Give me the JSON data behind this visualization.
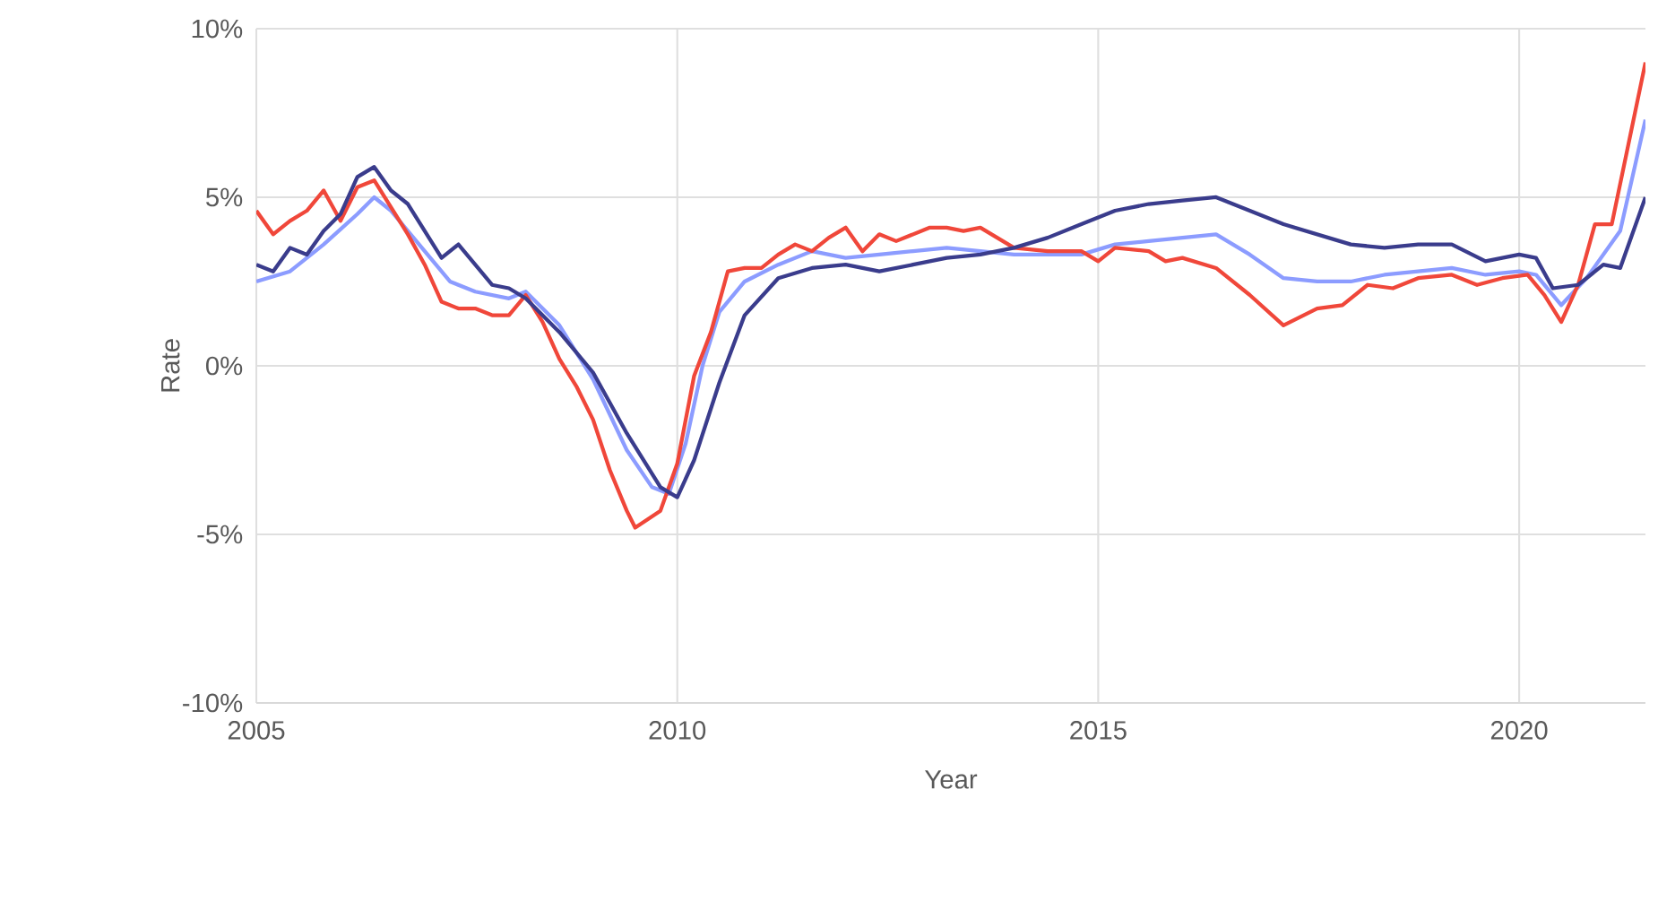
{
  "chart_data": {
    "type": "line",
    "xlabel": "Year",
    "ylabel": "Rate",
    "xlim": [
      2005,
      2021.5
    ],
    "ylim": [
      -10,
      10
    ],
    "xticks": [
      2005,
      2010,
      2015,
      2020
    ],
    "yticks": [
      {
        "value": -10,
        "label": "-10%"
      },
      {
        "value": -5,
        "label": "-5%"
      },
      {
        "value": 0,
        "label": "0%"
      },
      {
        "value": 5,
        "label": "5%"
      },
      {
        "value": 10,
        "label": "10%"
      }
    ],
    "grid": true,
    "marker": "none",
    "line_style": "solid",
    "series": [
      {
        "color": "#8c9cff",
        "x": [
          2005.0,
          2005.4,
          2005.8,
          2006.2,
          2006.4,
          2006.6,
          2006.8,
          2007.0,
          2007.3,
          2007.6,
          2008.0,
          2008.2,
          2008.6,
          2009.0,
          2009.4,
          2009.7,
          2009.9,
          2010.1,
          2010.3,
          2010.5,
          2010.8,
          2011.2,
          2011.6,
          2012.0,
          2012.4,
          2012.8,
          2013.2,
          2013.6,
          2014.0,
          2014.4,
          2014.8,
          2015.2,
          2015.6,
          2016.0,
          2016.4,
          2016.8,
          2017.2,
          2017.6,
          2018.0,
          2018.4,
          2018.8,
          2019.2,
          2019.6,
          2020.0,
          2020.2,
          2020.5,
          2020.8,
          2021.0,
          2021.2,
          2021.5
        ],
        "values": [
          2.5,
          2.8,
          3.6,
          4.5,
          5.0,
          4.6,
          4.0,
          3.4,
          2.5,
          2.2,
          2.0,
          2.2,
          1.2,
          -0.4,
          -2.5,
          -3.6,
          -3.8,
          -2.3,
          0.0,
          1.6,
          2.5,
          3.0,
          3.4,
          3.2,
          3.3,
          3.4,
          3.5,
          3.4,
          3.3,
          3.3,
          3.3,
          3.6,
          3.7,
          3.8,
          3.9,
          3.3,
          2.6,
          2.5,
          2.5,
          2.7,
          2.8,
          2.9,
          2.7,
          2.8,
          2.7,
          1.8,
          2.6,
          3.3,
          4.0,
          7.3
        ]
      },
      {
        "color": "#f0473a",
        "x": [
          2005.0,
          2005.2,
          2005.4,
          2005.6,
          2005.8,
          2006.0,
          2006.2,
          2006.4,
          2006.6,
          2006.8,
          2007.0,
          2007.2,
          2007.4,
          2007.6,
          2007.8,
          2008.0,
          2008.2,
          2008.4,
          2008.6,
          2008.8,
          2009.0,
          2009.2,
          2009.4,
          2009.5,
          2009.8,
          2010.0,
          2010.2,
          2010.4,
          2010.6,
          2010.8,
          2011.0,
          2011.2,
          2011.4,
          2011.6,
          2011.8,
          2012.0,
          2012.2,
          2012.4,
          2012.6,
          2012.8,
          2013.0,
          2013.2,
          2013.4,
          2013.6,
          2013.8,
          2014.0,
          2014.4,
          2014.8,
          2015.0,
          2015.2,
          2015.6,
          2015.8,
          2016.0,
          2016.4,
          2016.8,
          2017.2,
          2017.6,
          2017.9,
          2018.2,
          2018.5,
          2018.8,
          2019.2,
          2019.5,
          2019.8,
          2020.1,
          2020.3,
          2020.5,
          2020.7,
          2020.9,
          2021.1,
          2021.3,
          2021.5
        ],
        "values": [
          4.6,
          3.9,
          4.3,
          4.6,
          5.2,
          4.3,
          5.3,
          5.5,
          4.7,
          3.9,
          3.0,
          1.9,
          1.7,
          1.7,
          1.5,
          1.5,
          2.1,
          1.3,
          0.2,
          -0.6,
          -1.6,
          -3.1,
          -4.3,
          -4.8,
          -4.3,
          -2.9,
          -0.3,
          1.0,
          2.8,
          2.9,
          2.9,
          3.3,
          3.6,
          3.4,
          3.8,
          4.1,
          3.4,
          3.9,
          3.7,
          3.9,
          4.1,
          4.1,
          4.0,
          4.1,
          3.8,
          3.5,
          3.4,
          3.4,
          3.1,
          3.5,
          3.4,
          3.1,
          3.2,
          2.9,
          2.1,
          1.2,
          1.7,
          1.8,
          2.4,
          2.3,
          2.6,
          2.7,
          2.4,
          2.6,
          2.7,
          2.1,
          1.3,
          2.4,
          4.2,
          4.2,
          6.6,
          9.0
        ]
      },
      {
        "color": "#3a3c8c",
        "x": [
          2005.0,
          2005.2,
          2005.4,
          2005.6,
          2005.8,
          2006.0,
          2006.2,
          2006.4,
          2006.6,
          2006.8,
          2007.0,
          2007.2,
          2007.4,
          2007.6,
          2007.8,
          2008.0,
          2008.2,
          2008.6,
          2009.0,
          2009.4,
          2009.8,
          2010.0,
          2010.2,
          2010.5,
          2010.8,
          2011.2,
          2011.6,
          2012.0,
          2012.4,
          2012.8,
          2013.2,
          2013.6,
          2014.0,
          2014.4,
          2014.8,
          2015.2,
          2015.6,
          2016.0,
          2016.4,
          2016.8,
          2017.2,
          2017.6,
          2018.0,
          2018.4,
          2018.8,
          2019.2,
          2019.6,
          2020.0,
          2020.2,
          2020.4,
          2020.7,
          2021.0,
          2021.2,
          2021.5
        ],
        "values": [
          3.0,
          2.8,
          3.5,
          3.3,
          4.0,
          4.5,
          5.6,
          5.9,
          5.2,
          4.8,
          4.0,
          3.2,
          3.6,
          3.0,
          2.4,
          2.3,
          2.0,
          1.0,
          -0.2,
          -2.0,
          -3.6,
          -3.9,
          -2.8,
          -0.5,
          1.5,
          2.6,
          2.9,
          3.0,
          2.8,
          3.0,
          3.2,
          3.3,
          3.5,
          3.8,
          4.2,
          4.6,
          4.8,
          4.9,
          5.0,
          4.6,
          4.2,
          3.9,
          3.6,
          3.5,
          3.6,
          3.6,
          3.1,
          3.3,
          3.2,
          2.3,
          2.4,
          3.0,
          2.9,
          5.0
        ]
      }
    ]
  }
}
